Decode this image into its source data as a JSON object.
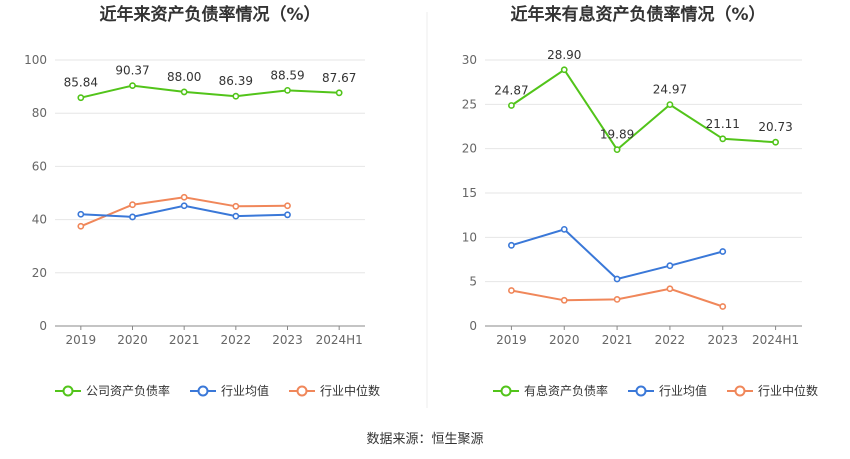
{
  "source_note": "数据来源：恒生聚源",
  "chart_data": [
    {
      "type": "line",
      "title": "近年来资产负债率情况（%）",
      "categories": [
        "2019",
        "2020",
        "2021",
        "2022",
        "2023",
        "2024H1"
      ],
      "ylim": [
        0,
        100
      ],
      "yticks": [
        "0",
        "20",
        "40",
        "60",
        "80",
        "100"
      ],
      "grid": true,
      "legend_position": "bottom",
      "series": [
        {
          "name": "公司资产负债率",
          "color": "#52c41a",
          "values": [
            85.84,
            90.37,
            88.0,
            86.39,
            88.59,
            87.67
          ],
          "labels": [
            "85.84",
            "90.37",
            "88.00",
            "86.39",
            "88.59",
            "87.67"
          ]
        },
        {
          "name": "行业均值",
          "color": "#3a78d8",
          "values": [
            42.0,
            41.0,
            45.2,
            41.3,
            41.8,
            null
          ]
        },
        {
          "name": "行业中位数",
          "color": "#f0875a",
          "values": [
            37.5,
            45.6,
            48.4,
            45.0,
            45.2,
            null
          ]
        }
      ]
    },
    {
      "type": "line",
      "title": "近年来有息资产负债率情况（%）",
      "categories": [
        "2019",
        "2020",
        "2021",
        "2022",
        "2023",
        "2024H1"
      ],
      "ylim": [
        0,
        30
      ],
      "yticks": [
        "0",
        "5",
        "10",
        "15",
        "20",
        "25",
        "30"
      ],
      "grid": true,
      "legend_position": "bottom",
      "series": [
        {
          "name": "有息资产负债率",
          "color": "#52c41a",
          "values": [
            24.87,
            28.9,
            19.89,
            24.97,
            21.11,
            20.73
          ],
          "labels": [
            "24.87",
            "28.90",
            "19.89",
            "24.97",
            "21.11",
            "20.73"
          ]
        },
        {
          "name": "行业均值",
          "color": "#3a78d8",
          "values": [
            9.1,
            10.9,
            5.3,
            6.8,
            8.4,
            null
          ]
        },
        {
          "name": "行业中位数",
          "color": "#f0875a",
          "values": [
            4.0,
            2.9,
            3.0,
            4.2,
            2.2,
            null
          ]
        }
      ]
    }
  ]
}
